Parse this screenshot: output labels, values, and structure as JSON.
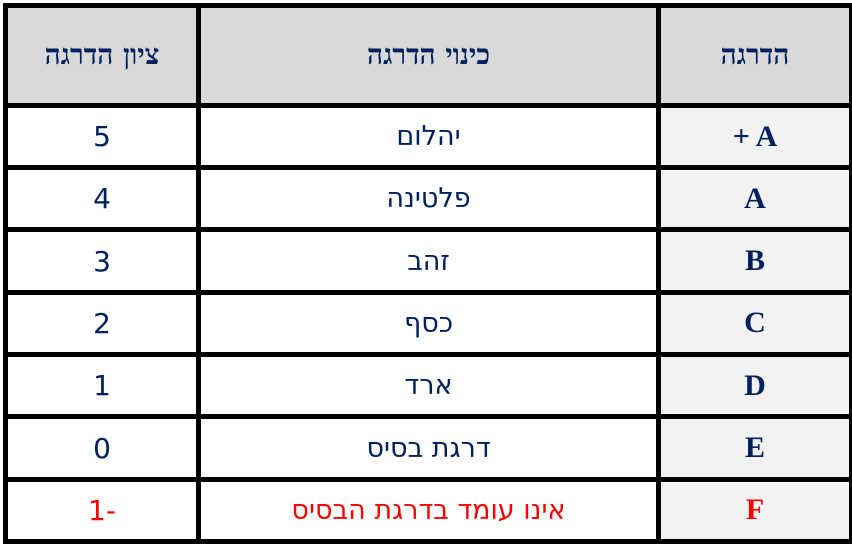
{
  "headers": {
    "grade": "הדרגה",
    "name": "כינוי הדרגה",
    "score": "ציון הדרגה"
  },
  "rows": [
    {
      "grade": "+ A",
      "name": "יהלום",
      "score": "5"
    },
    {
      "grade": "A",
      "name": "פלטינה",
      "score": "4"
    },
    {
      "grade": "B",
      "name": "זהב",
      "score": "3"
    },
    {
      "grade": "C",
      "name": "כסף",
      "score": "2"
    },
    {
      "grade": "D",
      "name": "ארד",
      "score": "1"
    },
    {
      "grade": "E",
      "name": "דרגת בסיס",
      "score": "0"
    },
    {
      "grade": "F",
      "name": "אינו עומד בדרגת הבסיס",
      "score": "-1"
    }
  ],
  "colors": {
    "text": "#002060",
    "fail": "#ff0000",
    "header_bg": "#d9d9d9",
    "grade_bg": "#f2f2f2"
  }
}
